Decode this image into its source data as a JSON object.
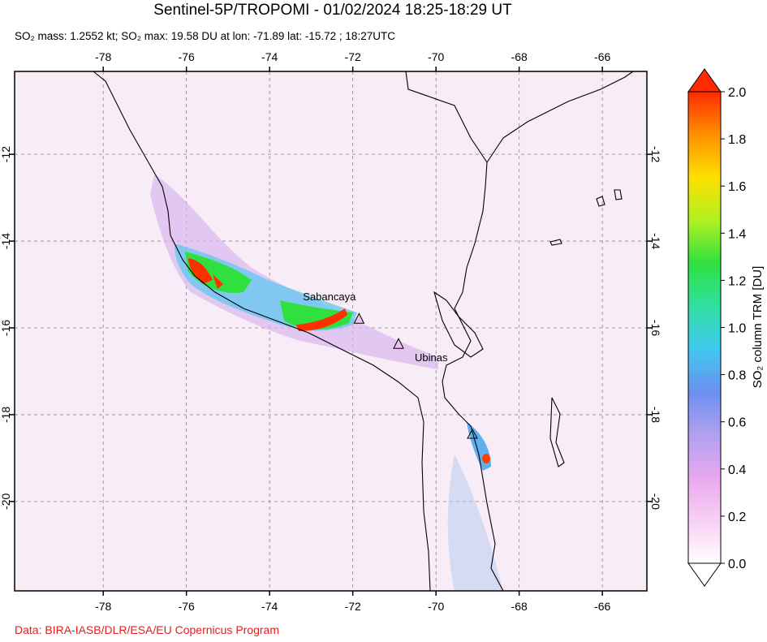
{
  "header": {
    "title": "Sentinel-5P/TROPOMI - 01/02/2024 18:25-18:29 UT",
    "subtitle": "SO₂ mass: 1.2552 kt; SO₂ max: 19.58 DU at lon: -71.89 lat: -15.72 ; 18:27UTC"
  },
  "map": {
    "xlim": [
      -80.13,
      -64.93
    ],
    "ylim": [
      -22.06,
      -10.09
    ],
    "xticks": [
      -78,
      -76,
      -74,
      -72,
      -70,
      -68,
      -66
    ],
    "yticks": [
      -12,
      -14,
      -16,
      -18,
      -20
    ],
    "grid": true,
    "volcanoes": [
      {
        "name": "Sabancaya",
        "lon": -71.85,
        "lat": -15.78
      },
      {
        "name": "Ubinas",
        "lon": -70.9,
        "lat": -16.36
      }
    ]
  },
  "colorbar": {
    "label": "SO₂ column TRM [DU]",
    "lim": [
      0,
      2
    ],
    "ticks": [
      {
        "value": 0,
        "label": "0.0"
      },
      0.2,
      0.4,
      0.6,
      0.8,
      {
        "value": 1,
        "label": "1.0"
      },
      1.2,
      1.4,
      1.6,
      1.8,
      {
        "value": 2,
        "label": "2.0"
      }
    ],
    "colors": [
      "#ffffff",
      "#f8d0f4",
      "#e8a8f0",
      "#b0a0f0",
      "#6c90f0",
      "#40c8f0",
      "#30e0a0",
      "#30e040",
      "#b0f020",
      "#ffe000",
      "#ff9000",
      "#ff2a00"
    ]
  },
  "footer": {
    "credit": "Data: BIRA-IASB/DLR/ESA/EU Copernicus Program"
  }
}
